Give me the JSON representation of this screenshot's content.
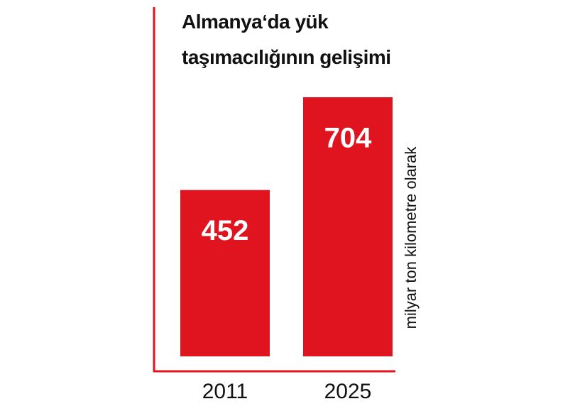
{
  "chart_data": {
    "type": "bar",
    "title": "Almanya‘da yük taşımacılığının gelişimi",
    "categories": [
      "2011",
      "2025"
    ],
    "values": [
      452,
      704
    ],
    "color": "#e0141f",
    "y_label": "milyar ton kilometre olarak"
  }
}
